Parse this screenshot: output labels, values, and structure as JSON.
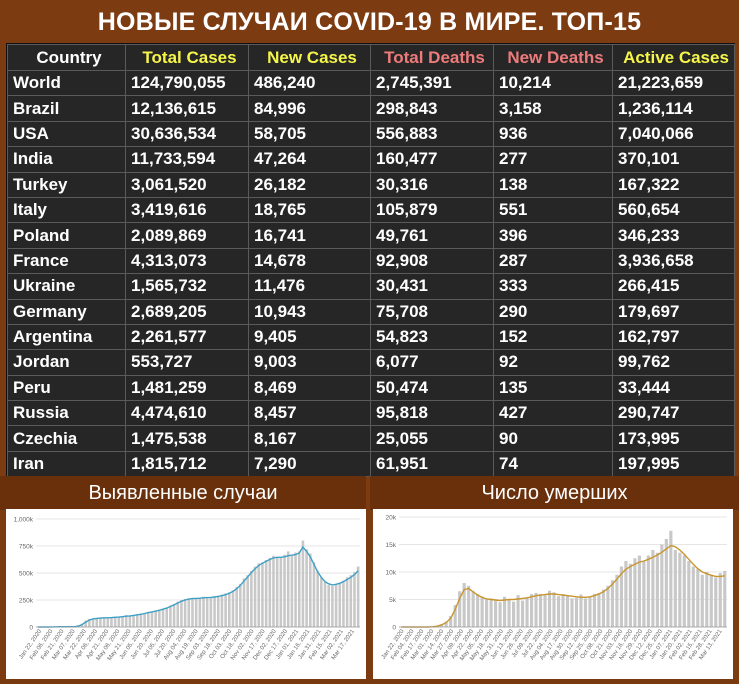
{
  "title": "НОВЫЕ СЛУЧАИ COVID-19 В МИРЕ. ТОП-15",
  "table": {
    "headers": [
      "Country",
      "Total Cases",
      "New Cases",
      "Total Deaths",
      "New Deaths",
      "Active Cases"
    ],
    "rows": [
      [
        "World",
        "124,790,055",
        "486,240",
        "2,745,391",
        "10,214",
        "21,223,659"
      ],
      [
        "Brazil",
        "12,136,615",
        "84,996",
        "298,843",
        "3,158",
        "1,236,114"
      ],
      [
        "USA",
        "30,636,534",
        "58,705",
        "556,883",
        "936",
        "7,040,066"
      ],
      [
        "India",
        "11,733,594",
        "47,264",
        "160,477",
        "277",
        "370,101"
      ],
      [
        "Turkey",
        "3,061,520",
        "26,182",
        "30,316",
        "138",
        "167,322"
      ],
      [
        "Italy",
        "3,419,616",
        "18,765",
        "105,879",
        "551",
        "560,654"
      ],
      [
        "Poland",
        "2,089,869",
        "16,741",
        "49,761",
        "396",
        "346,233"
      ],
      [
        "France",
        "4,313,073",
        "14,678",
        "92,908",
        "287",
        "3,936,658"
      ],
      [
        "Ukraine",
        "1,565,732",
        "11,476",
        "30,431",
        "333",
        "266,415"
      ],
      [
        "Germany",
        "2,689,205",
        "10,943",
        "75,708",
        "290",
        "179,697"
      ],
      [
        "Argentina",
        "2,261,577",
        "9,405",
        "54,823",
        "152",
        "162,797"
      ],
      [
        "Jordan",
        "553,727",
        "9,003",
        "6,077",
        "92",
        "99,762"
      ],
      [
        "Peru",
        "1,481,259",
        "8,469",
        "50,474",
        "135",
        "33,444"
      ],
      [
        "Russia",
        "4,474,610",
        "8,457",
        "95,818",
        "427",
        "290,747"
      ],
      [
        "Czechia",
        "1,475,538",
        "8,167",
        "25,055",
        "90",
        "173,995"
      ],
      [
        "Iran",
        "1,815,712",
        "7,290",
        "61,951",
        "74",
        "197,995"
      ]
    ]
  },
  "chart_data": [
    {
      "type": "bar",
      "subtitle": "Выявленные случаи",
      "ylim": [
        0,
        1000000
      ],
      "yticks": [
        "0",
        "250k",
        "500k",
        "750k",
        "1,000k"
      ],
      "ytick_values": [
        0,
        250000,
        500000,
        750000,
        1000000
      ],
      "xtick_labels": [
        "Jan 22, 2020",
        "Feb 06, 2020",
        "Feb 21, 2020",
        "Mar 07, 2020",
        "Mar 22, 2020",
        "Apr 06, 2020",
        "Apr 21, 2020",
        "May 06, 2020",
        "May 21, 2020",
        "Jun 05, 2020",
        "Jun 20, 2020",
        "Jul 05, 2020",
        "Jul 20, 2020",
        "Aug 04, 2020",
        "Aug 19, 2020",
        "Sep 03, 2020",
        "Sep 18, 2020",
        "Oct 03, 2020",
        "Oct 18, 2020",
        "Nov 02, 2020",
        "Nov 17, 2020",
        "Dec 02, 2020",
        "Dec 17, 2020",
        "Jan 01, 2021",
        "Jan 16, 2021",
        "Jan 31, 2021",
        "Feb 15, 2021",
        "Mar 02, 2021",
        "Mar 17, 2021"
      ],
      "series_bars": [
        0,
        0,
        0,
        1000,
        2000,
        5000,
        2000,
        3000,
        2000,
        3000,
        2000,
        15000,
        30000,
        60000,
        75000,
        80000,
        80000,
        85000,
        90000,
        80000,
        90000,
        95000,
        95000,
        100000,
        110000,
        105000,
        110000,
        120000,
        125000,
        130000,
        140000,
        145000,
        150000,
        160000,
        170000,
        180000,
        200000,
        215000,
        235000,
        250000,
        260000,
        265000,
        270000,
        260000,
        270000,
        280000,
        270000,
        275000,
        285000,
        290000,
        300000,
        310000,
        320000,
        340000,
        370000,
        400000,
        450000,
        480000,
        520000,
        560000,
        590000,
        600000,
        620000,
        640000,
        660000,
        650000,
        640000,
        670000,
        700000,
        660000,
        690000,
        700000,
        800000,
        720000,
        680000,
        600000,
        520000,
        460000,
        420000,
        390000,
        380000,
        390000,
        410000,
        430000,
        460000,
        480000,
        510000,
        560000
      ],
      "series_avg": [
        0,
        0,
        0,
        0,
        1000,
        2000,
        2500,
        2500,
        2500,
        2500,
        2500,
        8000,
        22000,
        45000,
        65000,
        75000,
        80000,
        82000,
        85000,
        85000,
        87000,
        90000,
        92000,
        95000,
        100000,
        103000,
        107000,
        113000,
        118000,
        125000,
        133000,
        140000,
        147000,
        155000,
        165000,
        175000,
        190000,
        205000,
        222000,
        238000,
        250000,
        258000,
        263000,
        265000,
        267000,
        270000,
        272000,
        274000,
        278000,
        283000,
        290000,
        300000,
        313000,
        330000,
        355000,
        385000,
        425000,
        465000,
        505000,
        540000,
        570000,
        590000,
        608000,
        625000,
        640000,
        645000,
        645000,
        650000,
        660000,
        665000,
        670000,
        685000,
        740000,
        700000,
        650000,
        580000,
        510000,
        460000,
        420000,
        400000,
        390000,
        395000,
        405000,
        420000,
        440000,
        460000,
        485000,
        520000
      ],
      "bar_color": "#c8c8c8",
      "line_color": "#3fa0c6"
    },
    {
      "type": "bar",
      "subtitle": "Число умерших",
      "ylim": [
        0,
        20000
      ],
      "yticks": [
        "0",
        "5k",
        "10k",
        "15k",
        "20k"
      ],
      "ytick_values": [
        0,
        5000,
        10000,
        15000,
        20000
      ],
      "xtick_labels": [
        "Jan 22, 2020",
        "Feb 04, 2020",
        "Feb 17, 2020",
        "Mar 01, 2020",
        "Mar 14, 2020",
        "Mar 27, 2020",
        "Apr 09, 2020",
        "Apr 22, 2020",
        "May 05, 2020",
        "May 18, 2020",
        "May 31, 2020",
        "Jun 13, 2020",
        "Jun 26, 2020",
        "Jul 09, 2020",
        "Jul 22, 2020",
        "Aug 04, 2020",
        "Aug 17, 2020",
        "Aug 30, 2020",
        "Sep 12, 2020",
        "Sep 25, 2020",
        "Oct 08, 2020",
        "Oct 21, 2020",
        "Nov 03, 2020",
        "Nov 16, 2020",
        "Nov 29, 2020",
        "Dec 12, 2020",
        "Dec 25, 2020",
        "Jan 07, 2021",
        "Jan 20, 2021",
        "Feb 02, 2021",
        "Feb 15, 2021",
        "Feb 28, 2021",
        "Mar 13, 2021"
      ],
      "series_bars": [
        0,
        0,
        0,
        0,
        0,
        0,
        0,
        100,
        200,
        500,
        1000,
        2000,
        4000,
        6500,
        8000,
        7500,
        6500,
        6000,
        5500,
        5000,
        5200,
        4800,
        4500,
        5500,
        5000,
        4600,
        5800,
        4800,
        5400,
        6000,
        6200,
        6000,
        5800,
        6600,
        6300,
        5600,
        6000,
        5800,
        5200,
        5300,
        5900,
        5200,
        5400,
        6000,
        6200,
        6800,
        7500,
        8500,
        9500,
        11000,
        12000,
        11500,
        12500,
        13000,
        12000,
        13000,
        14000,
        13500,
        15000,
        16000,
        17500,
        14000,
        13500,
        13000,
        12000,
        11000,
        10500,
        9500,
        10000,
        9500,
        9000,
        9800,
        10200
      ],
      "series_avg": [
        0,
        0,
        0,
        0,
        0,
        0,
        0,
        50,
        150,
        400,
        800,
        1600,
        3200,
        5200,
        6800,
        7000,
        6400,
        5800,
        5400,
        5100,
        5000,
        4900,
        4800,
        4900,
        5000,
        5000,
        5100,
        5200,
        5300,
        5500,
        5700,
        5800,
        5900,
        6000,
        6000,
        5900,
        5800,
        5700,
        5600,
        5500,
        5400,
        5400,
        5500,
        5700,
        6000,
        6400,
        7000,
        7800,
        8700,
        9700,
        10500,
        11000,
        11400,
        11800,
        12000,
        12300,
        12700,
        13100,
        13600,
        14200,
        14800,
        14600,
        14000,
        13200,
        12300,
        11400,
        10600,
        10000,
        9700,
        9400,
        9200,
        9200,
        9300
      ],
      "bar_color": "#c8c8c8",
      "line_color": "#c8952e"
    }
  ]
}
